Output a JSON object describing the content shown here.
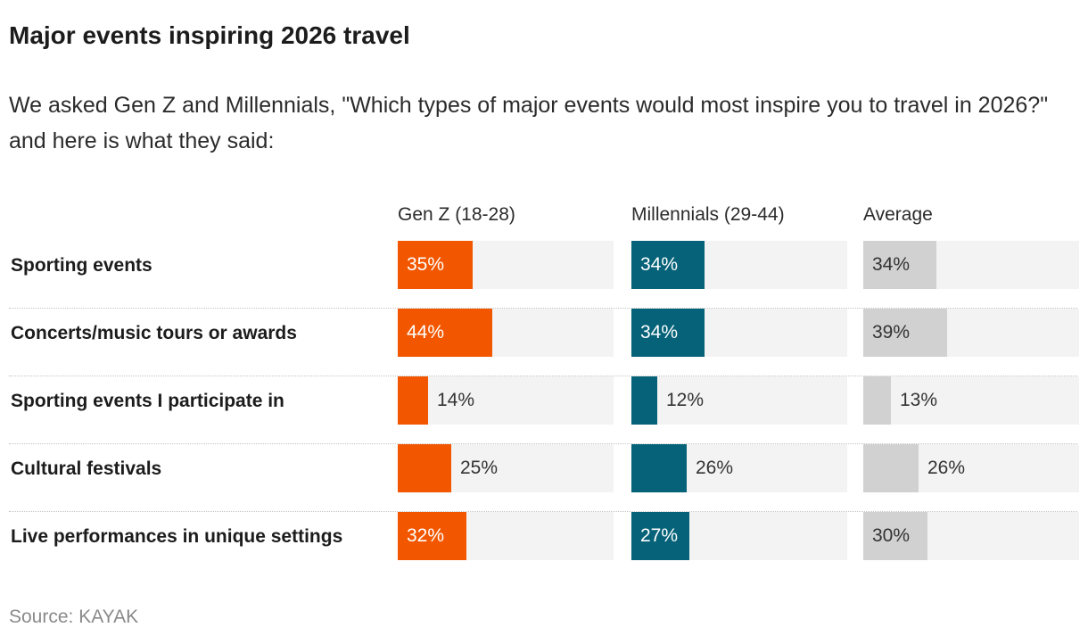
{
  "title": "Major events inspiring 2026 travel",
  "subtitle": "We asked Gen Z and Millennials, \"Which types of major events would most inspire you to travel in 2026?\" and here is what they said:",
  "source": "Source: KAYAK",
  "colors": {
    "gen_z": "#f25700",
    "millennials": "#056278",
    "average": "#d1d1d1",
    "track": "#f3f3f3"
  },
  "chart_data": {
    "type": "bar",
    "orientation": "horizontal",
    "title": "Major events inspiring 2026 travel",
    "categories": [
      "Sporting events",
      "Concerts/music tours or awards",
      "Sporting events I participate in",
      "Cultural festivals",
      "Live performances in unique settings"
    ],
    "series": [
      {
        "name": "Gen Z (18-28)",
        "values": [
          35,
          44,
          14,
          25,
          32
        ],
        "labels": [
          "35%",
          "44%",
          "14%",
          "25%",
          "32%"
        ]
      },
      {
        "name": "Millennials (29-44)",
        "values": [
          34,
          34,
          12,
          26,
          27
        ],
        "labels": [
          "34%",
          "34%",
          "12%",
          "26%",
          "27%"
        ]
      },
      {
        "name": "Average",
        "values": [
          34,
          39,
          13,
          26,
          30
        ],
        "labels": [
          "34%",
          "39%",
          "13%",
          "26%",
          "30%"
        ]
      }
    ],
    "xlim": [
      0,
      100
    ],
    "grid": false,
    "legend": "column headers"
  }
}
